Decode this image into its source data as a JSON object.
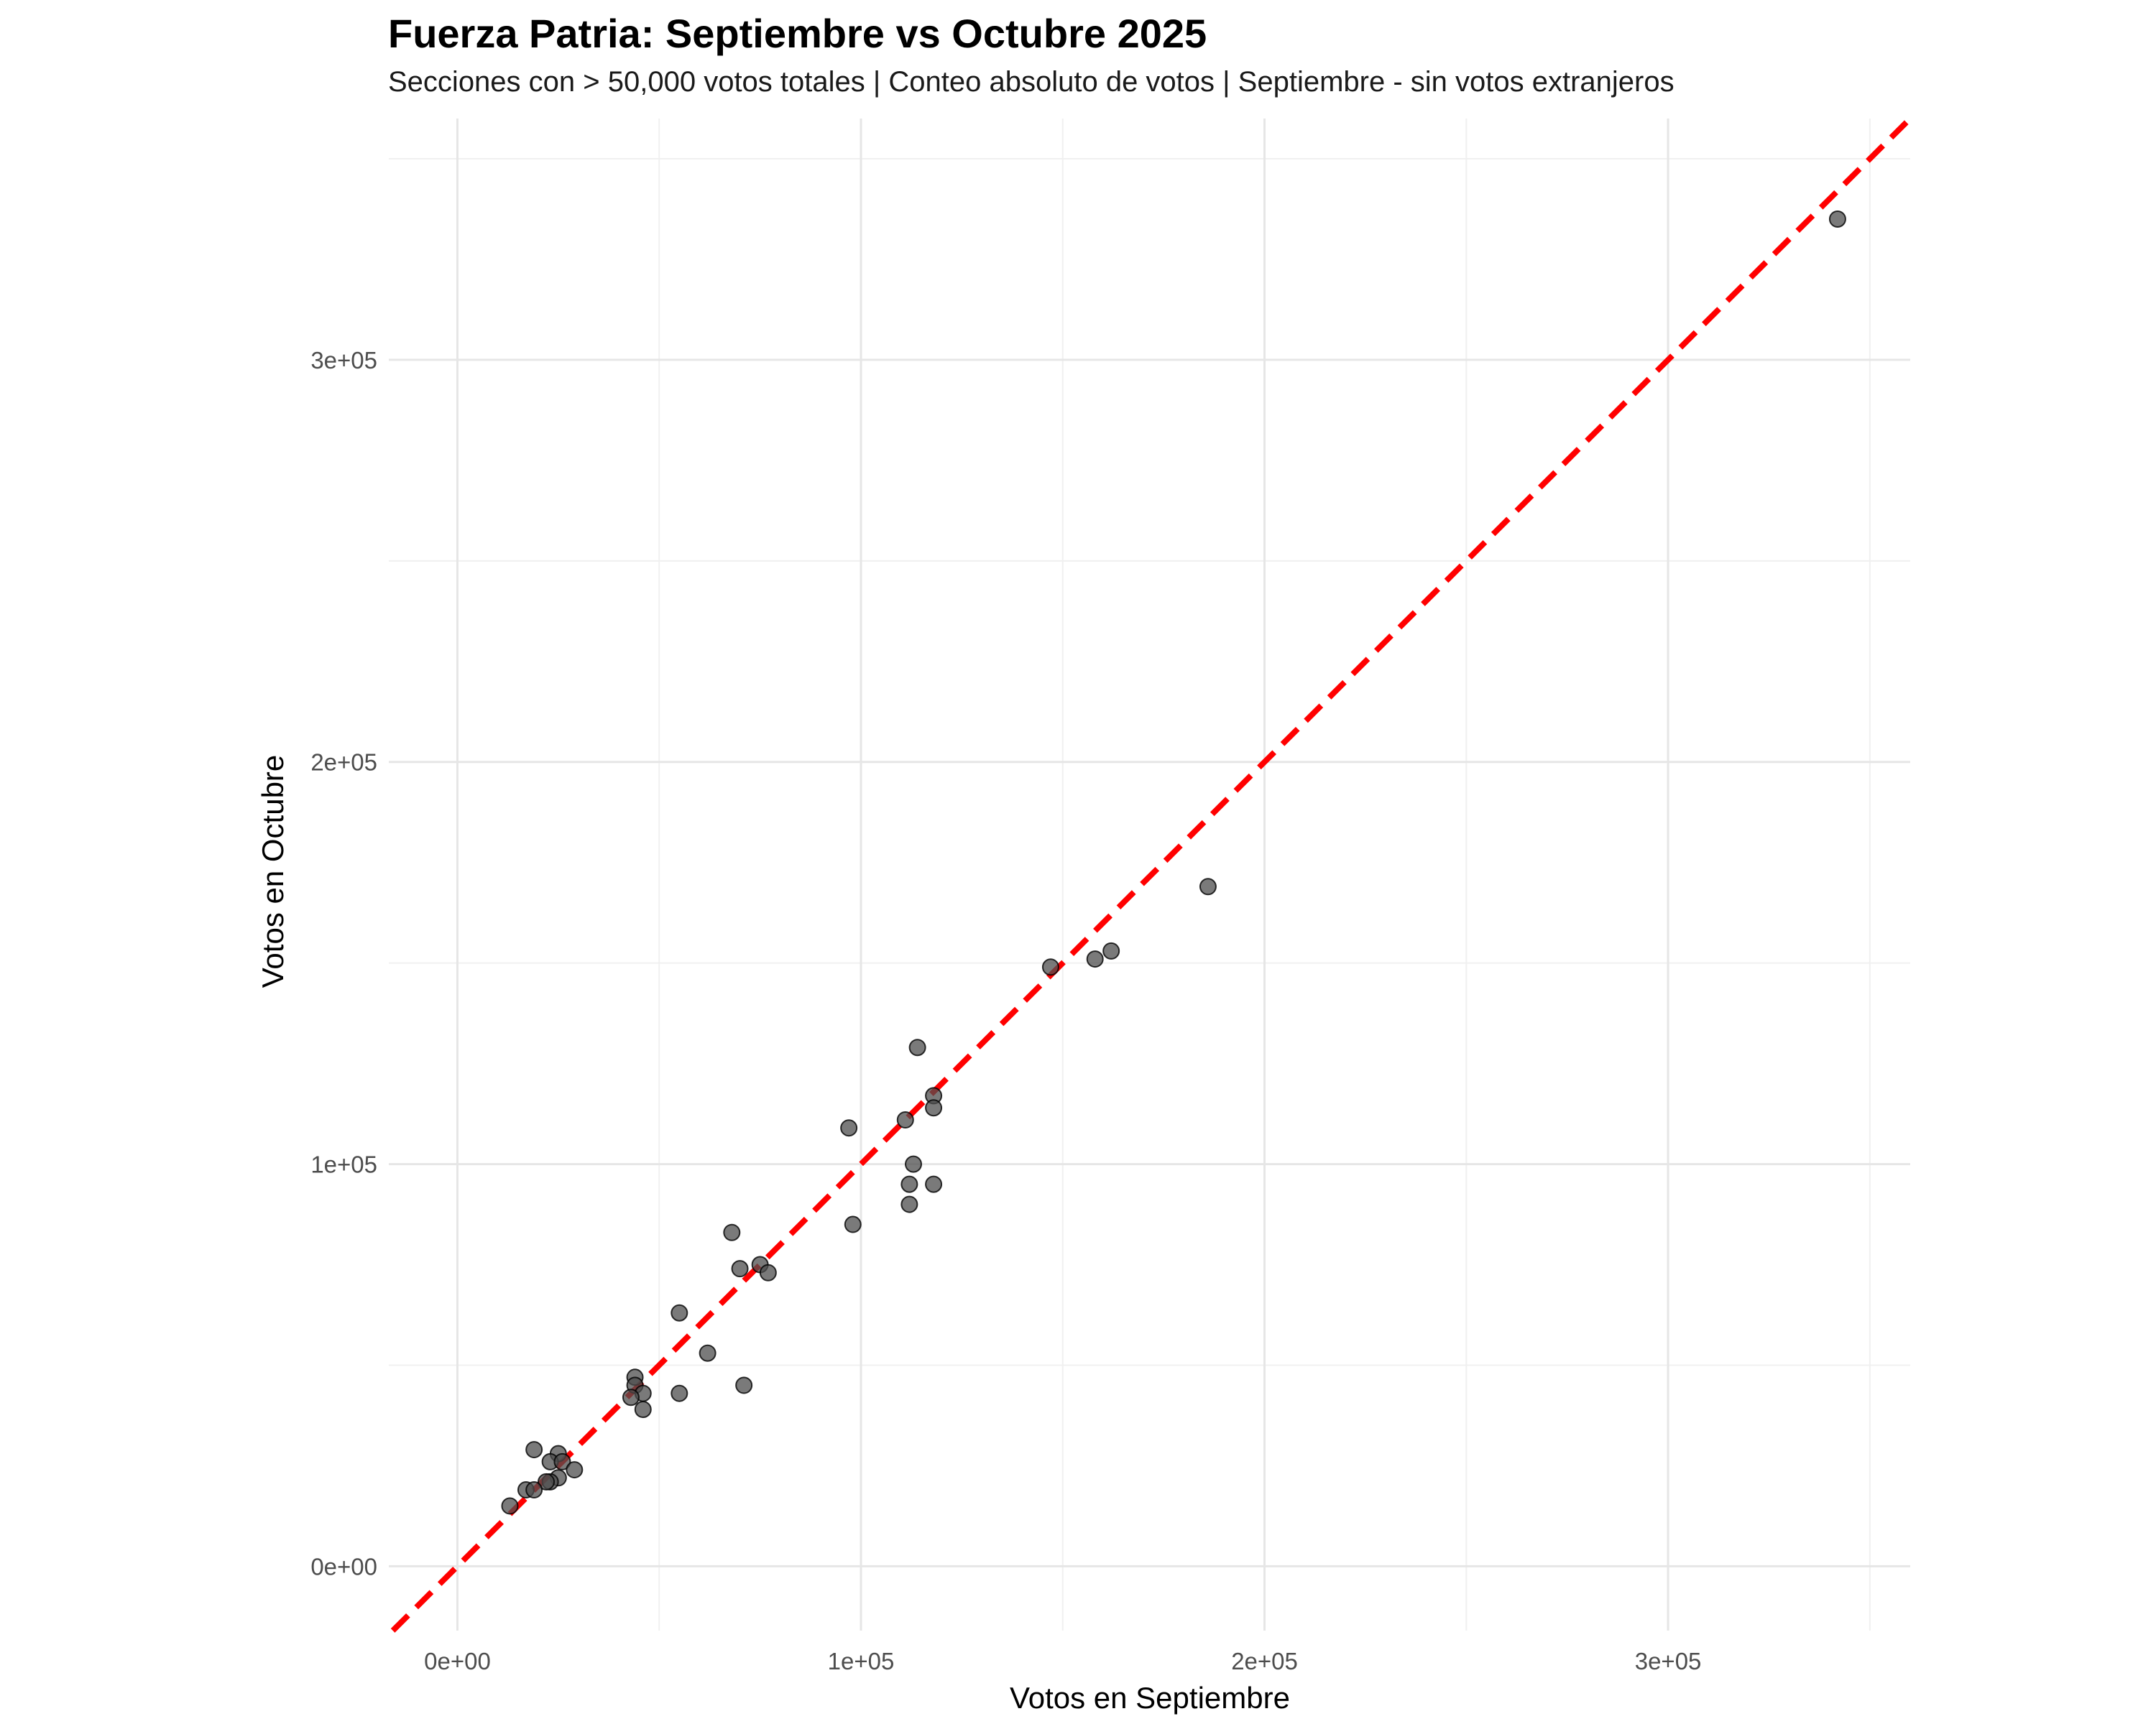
{
  "chart_data": {
    "type": "scatter",
    "title": "Fuerza Patria: Septiembre vs Octubre 2025",
    "subtitle": "Secciones con > 50,000 votos totales | Conteo absoluto de votos | Septiembre - sin votos extranjeros",
    "xlabel": "Votos en Septiembre",
    "ylabel": "Votos en Octubre",
    "xlim": [
      -17000,
      360000
    ],
    "ylim": [
      -16000,
      360000
    ],
    "x_ticks": [
      0,
      100000,
      200000,
      300000
    ],
    "x_tick_labels": [
      "0e+00",
      "1e+05",
      "2e+05",
      "3e+05"
    ],
    "y_ticks": [
      0,
      100000,
      200000,
      300000
    ],
    "y_tick_labels": [
      "0e+00",
      "1e+05",
      "2e+05",
      "3e+05"
    ],
    "grid": true,
    "reference_line": {
      "slope": 1,
      "intercept": 0,
      "color": "#ff0000",
      "style": "dashed"
    },
    "point_color": "#4d4d4d",
    "points": [
      {
        "x": 342000,
        "y": 335000
      },
      {
        "x": 186000,
        "y": 169000
      },
      {
        "x": 162000,
        "y": 153000
      },
      {
        "x": 158000,
        "y": 151000
      },
      {
        "x": 147000,
        "y": 149000
      },
      {
        "x": 114000,
        "y": 129000
      },
      {
        "x": 118000,
        "y": 117000
      },
      {
        "x": 118000,
        "y": 114000
      },
      {
        "x": 111000,
        "y": 111000
      },
      {
        "x": 97000,
        "y": 109000
      },
      {
        "x": 113000,
        "y": 100000
      },
      {
        "x": 112000,
        "y": 95000
      },
      {
        "x": 118000,
        "y": 95000
      },
      {
        "x": 112000,
        "y": 90000
      },
      {
        "x": 98000,
        "y": 85000
      },
      {
        "x": 68000,
        "y": 83000
      },
      {
        "x": 75000,
        "y": 75000
      },
      {
        "x": 70000,
        "y": 74000
      },
      {
        "x": 77000,
        "y": 73000
      },
      {
        "x": 55000,
        "y": 63000
      },
      {
        "x": 62000,
        "y": 53000
      },
      {
        "x": 71000,
        "y": 45000
      },
      {
        "x": 55000,
        "y": 43000
      },
      {
        "x": 44000,
        "y": 47000
      },
      {
        "x": 44000,
        "y": 45000
      },
      {
        "x": 46000,
        "y": 43000
      },
      {
        "x": 43000,
        "y": 42000
      },
      {
        "x": 46000,
        "y": 39000
      },
      {
        "x": 19000,
        "y": 29000
      },
      {
        "x": 25000,
        "y": 28000
      },
      {
        "x": 23000,
        "y": 26000
      },
      {
        "x": 26000,
        "y": 26000
      },
      {
        "x": 29000,
        "y": 24000
      },
      {
        "x": 25000,
        "y": 22000
      },
      {
        "x": 23000,
        "y": 21000
      },
      {
        "x": 22000,
        "y": 21000
      },
      {
        "x": 17000,
        "y": 19000
      },
      {
        "x": 19000,
        "y": 19000
      },
      {
        "x": 13000,
        "y": 15000
      }
    ]
  }
}
